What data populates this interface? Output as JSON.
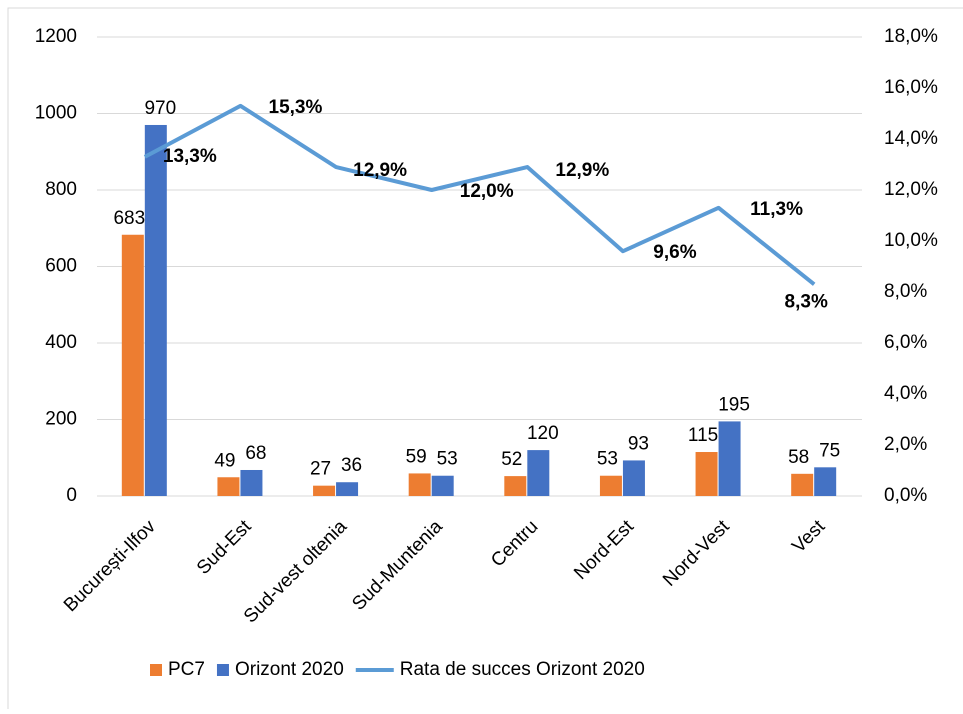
{
  "chart_data": {
    "type": "bar",
    "categories": [
      "București-Ilfov",
      "Sud-Est",
      "Sud-vest oltenia",
      "Sud-Muntenia",
      "Centru",
      "Nord-Est",
      "Nord-Vest",
      "Vest"
    ],
    "series": [
      {
        "name": "PC7",
        "color": "#ED7D31",
        "values": [
          683,
          49,
          27,
          59,
          52,
          53,
          115,
          58
        ]
      },
      {
        "name": "Orizont 2020",
        "color": "#4472C4",
        "values": [
          970,
          68,
          36,
          53,
          120,
          93,
          195,
          75
        ]
      },
      {
        "name": "Rata de succes Orizont 2020",
        "color": "#5B9BD5",
        "type": "line",
        "axis": "y2",
        "values": [
          13.3,
          15.3,
          12.9,
          12.0,
          12.9,
          9.6,
          11.3,
          8.3
        ],
        "value_labels": [
          "13,3%",
          "15,3%",
          "12,9%",
          "12,0%",
          "12,9%",
          "9,6%",
          "11,3%",
          "8,3%"
        ]
      }
    ],
    "ylim": [
      0,
      1200
    ],
    "yticks": [
      0,
      200,
      400,
      600,
      800,
      1000,
      1200
    ],
    "y2lim": [
      0,
      18
    ],
    "y2ticks": [
      {
        "value": 0,
        "label": "0,0%"
      },
      {
        "value": 2,
        "label": "2,0%"
      },
      {
        "value": 4,
        "label": "4,0%"
      },
      {
        "value": 6,
        "label": "6,0%"
      },
      {
        "value": 8,
        "label": "8,0%"
      },
      {
        "value": 10,
        "label": "10,0%"
      },
      {
        "value": 12,
        "label": "12,0%"
      },
      {
        "value": 14,
        "label": "14,0%"
      },
      {
        "value": 16,
        "label": "16,0%"
      },
      {
        "value": 18,
        "label": "18,0%"
      }
    ],
    "grid": true,
    "legend": "bottom"
  }
}
